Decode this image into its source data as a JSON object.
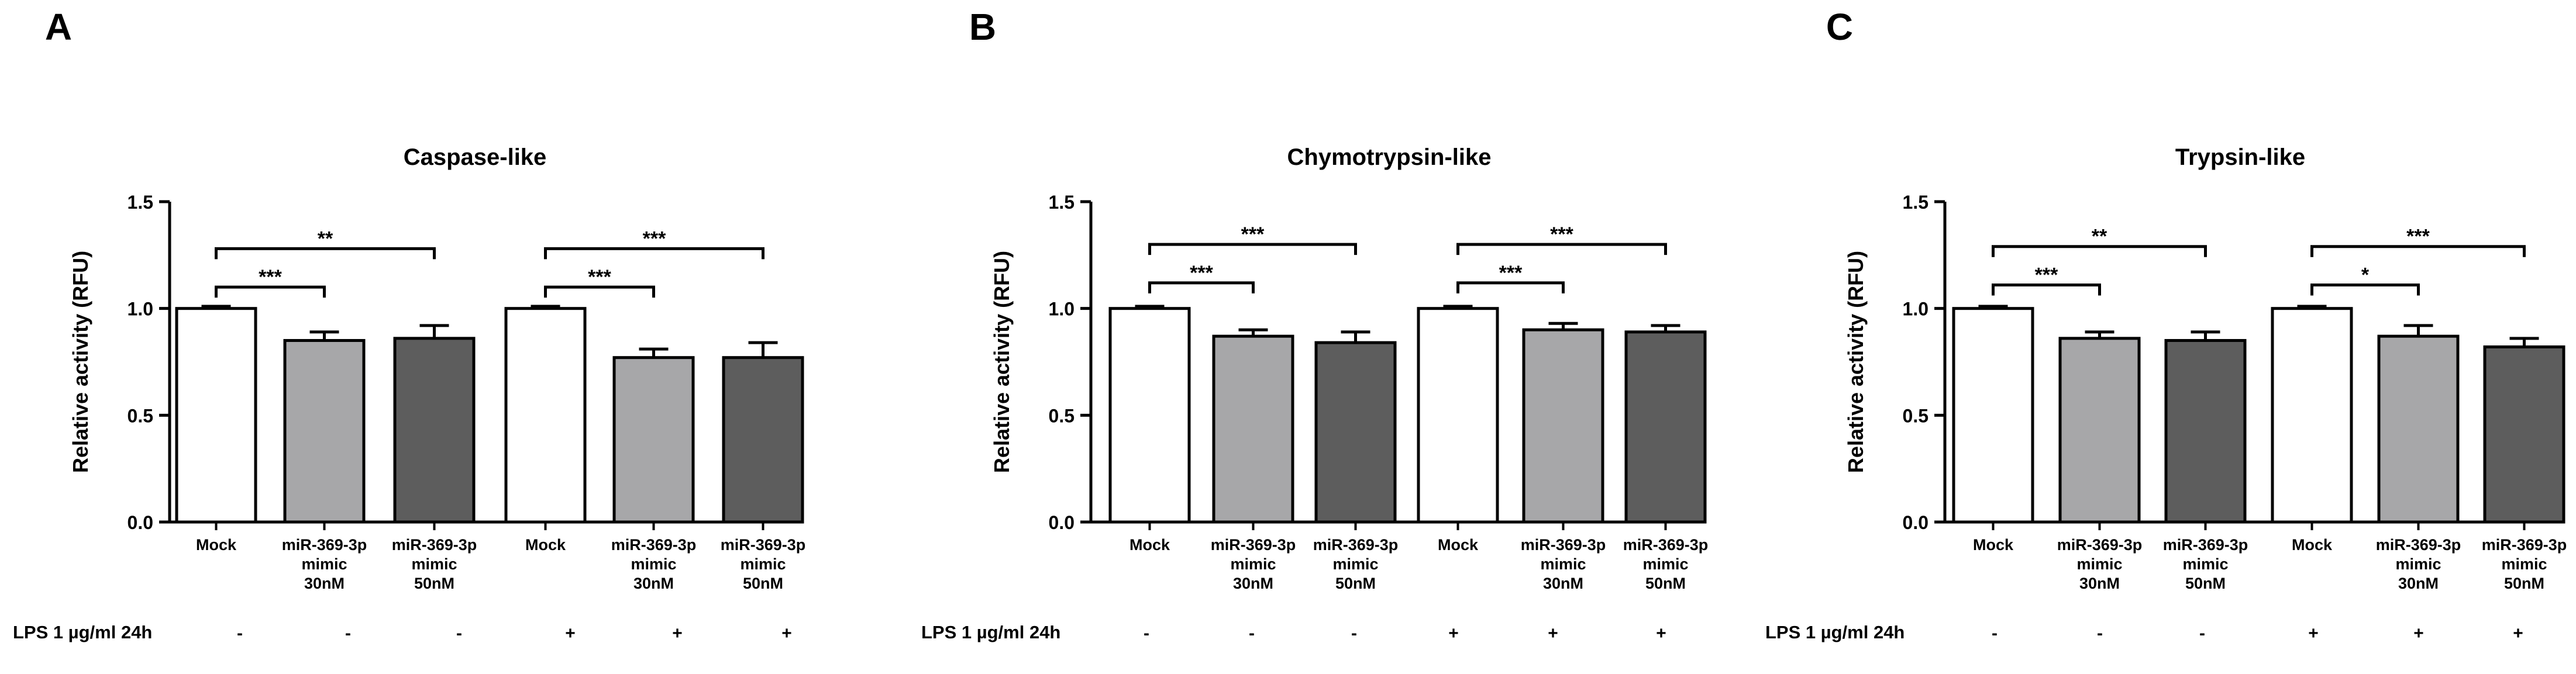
{
  "chart_data": [
    {
      "panel": "A",
      "type": "bar",
      "title": "Caspase-like",
      "ylabel": "Relative activity (RFU)",
      "xlabel": "",
      "ylim": [
        0.0,
        1.5
      ],
      "yticks": [
        "0.0",
        "0.5",
        "1.0",
        "1.5"
      ],
      "categories": [
        [
          "Mock"
        ],
        [
          "miR-369-3p",
          "mimic",
          "30nM"
        ],
        [
          "miR-369-3p",
          "mimic",
          "50nM"
        ],
        [
          "Mock"
        ],
        [
          "miR-369-3p",
          "mimic",
          "30nM"
        ],
        [
          "miR-369-3p",
          "mimic",
          "50nM"
        ]
      ],
      "values": [
        1.0,
        0.85,
        0.86,
        1.0,
        0.77,
        0.77
      ],
      "errors": [
        0.01,
        0.04,
        0.06,
        0.01,
        0.04,
        0.07
      ],
      "fills": [
        "#ffffff",
        "#a7a7a9",
        "#5d5d5d",
        "#ffffff",
        "#a7a7a9",
        "#5d5d5d"
      ],
      "significance": [
        {
          "from": 0,
          "to": 1,
          "label": "***",
          "y": 1.1
        },
        {
          "from": 0,
          "to": 2,
          "label": "**",
          "y": 1.28
        },
        {
          "from": 3,
          "to": 4,
          "label": "***",
          "y": 1.1
        },
        {
          "from": 3,
          "to": 5,
          "label": "***",
          "y": 1.28
        }
      ],
      "lps_label": "LPS 1 µg/ml 24h",
      "lps": [
        "-",
        "-",
        "-",
        "+",
        "+",
        "+"
      ]
    },
    {
      "panel": "B",
      "type": "bar",
      "title": "Chymotrypsin-like",
      "ylabel": "Relative activity (RFU)",
      "xlabel": "",
      "ylim": [
        0.0,
        1.5
      ],
      "yticks": [
        "0.0",
        "0.5",
        "1.0",
        "1.5"
      ],
      "categories": [
        [
          "Mock"
        ],
        [
          "miR-369-3p",
          "mimic",
          "30nM"
        ],
        [
          "miR-369-3p",
          "mimic",
          "50nM"
        ],
        [
          "Mock"
        ],
        [
          "miR-369-3p",
          "mimic",
          "30nM"
        ],
        [
          "miR-369-3p",
          "mimic",
          "50nM"
        ]
      ],
      "values": [
        1.0,
        0.87,
        0.84,
        1.0,
        0.9,
        0.89
      ],
      "errors": [
        0.01,
        0.03,
        0.05,
        0.01,
        0.03,
        0.03
      ],
      "fills": [
        "#ffffff",
        "#a7a7a9",
        "#5d5d5d",
        "#ffffff",
        "#a7a7a9",
        "#5d5d5d"
      ],
      "significance": [
        {
          "from": 0,
          "to": 1,
          "label": "***",
          "y": 1.12
        },
        {
          "from": 0,
          "to": 2,
          "label": "***",
          "y": 1.3
        },
        {
          "from": 3,
          "to": 4,
          "label": "***",
          "y": 1.12
        },
        {
          "from": 3,
          "to": 5,
          "label": "***",
          "y": 1.3
        }
      ],
      "lps_label": "LPS 1 µg/ml 24h",
      "lps": [
        "-",
        "-",
        "-",
        "+",
        "+",
        "+"
      ]
    },
    {
      "panel": "C",
      "type": "bar",
      "title": "Trypsin-like",
      "ylabel": "Relative activity (RFU)",
      "xlabel": "",
      "ylim": [
        0.0,
        1.5
      ],
      "yticks": [
        "0.0",
        "0.5",
        "1.0",
        "1.5"
      ],
      "categories": [
        [
          "Mock"
        ],
        [
          "miR-369-3p",
          "mimic",
          "30nM"
        ],
        [
          "miR-369-3p",
          "mimic",
          "50nM"
        ],
        [
          "Mock"
        ],
        [
          "miR-369-3p",
          "mimic",
          "30nM"
        ],
        [
          "miR-369-3p",
          "mimic",
          "50nM"
        ]
      ],
      "values": [
        1.0,
        0.86,
        0.85,
        1.0,
        0.87,
        0.82
      ],
      "errors": [
        0.01,
        0.03,
        0.04,
        0.01,
        0.05,
        0.04
      ],
      "fills": [
        "#ffffff",
        "#a7a7a9",
        "#5d5d5d",
        "#ffffff",
        "#a7a7a9",
        "#5d5d5d"
      ],
      "significance": [
        {
          "from": 0,
          "to": 1,
          "label": "***",
          "y": 1.11
        },
        {
          "from": 0,
          "to": 2,
          "label": "**",
          "y": 1.29
        },
        {
          "from": 3,
          "to": 4,
          "label": "*",
          "y": 1.11
        },
        {
          "from": 3,
          "to": 5,
          "label": "***",
          "y": 1.29
        }
      ],
      "lps_label": "LPS 1 µg/ml 24h",
      "lps": [
        "-",
        "-",
        "-",
        "+",
        "+",
        "+"
      ]
    }
  ]
}
